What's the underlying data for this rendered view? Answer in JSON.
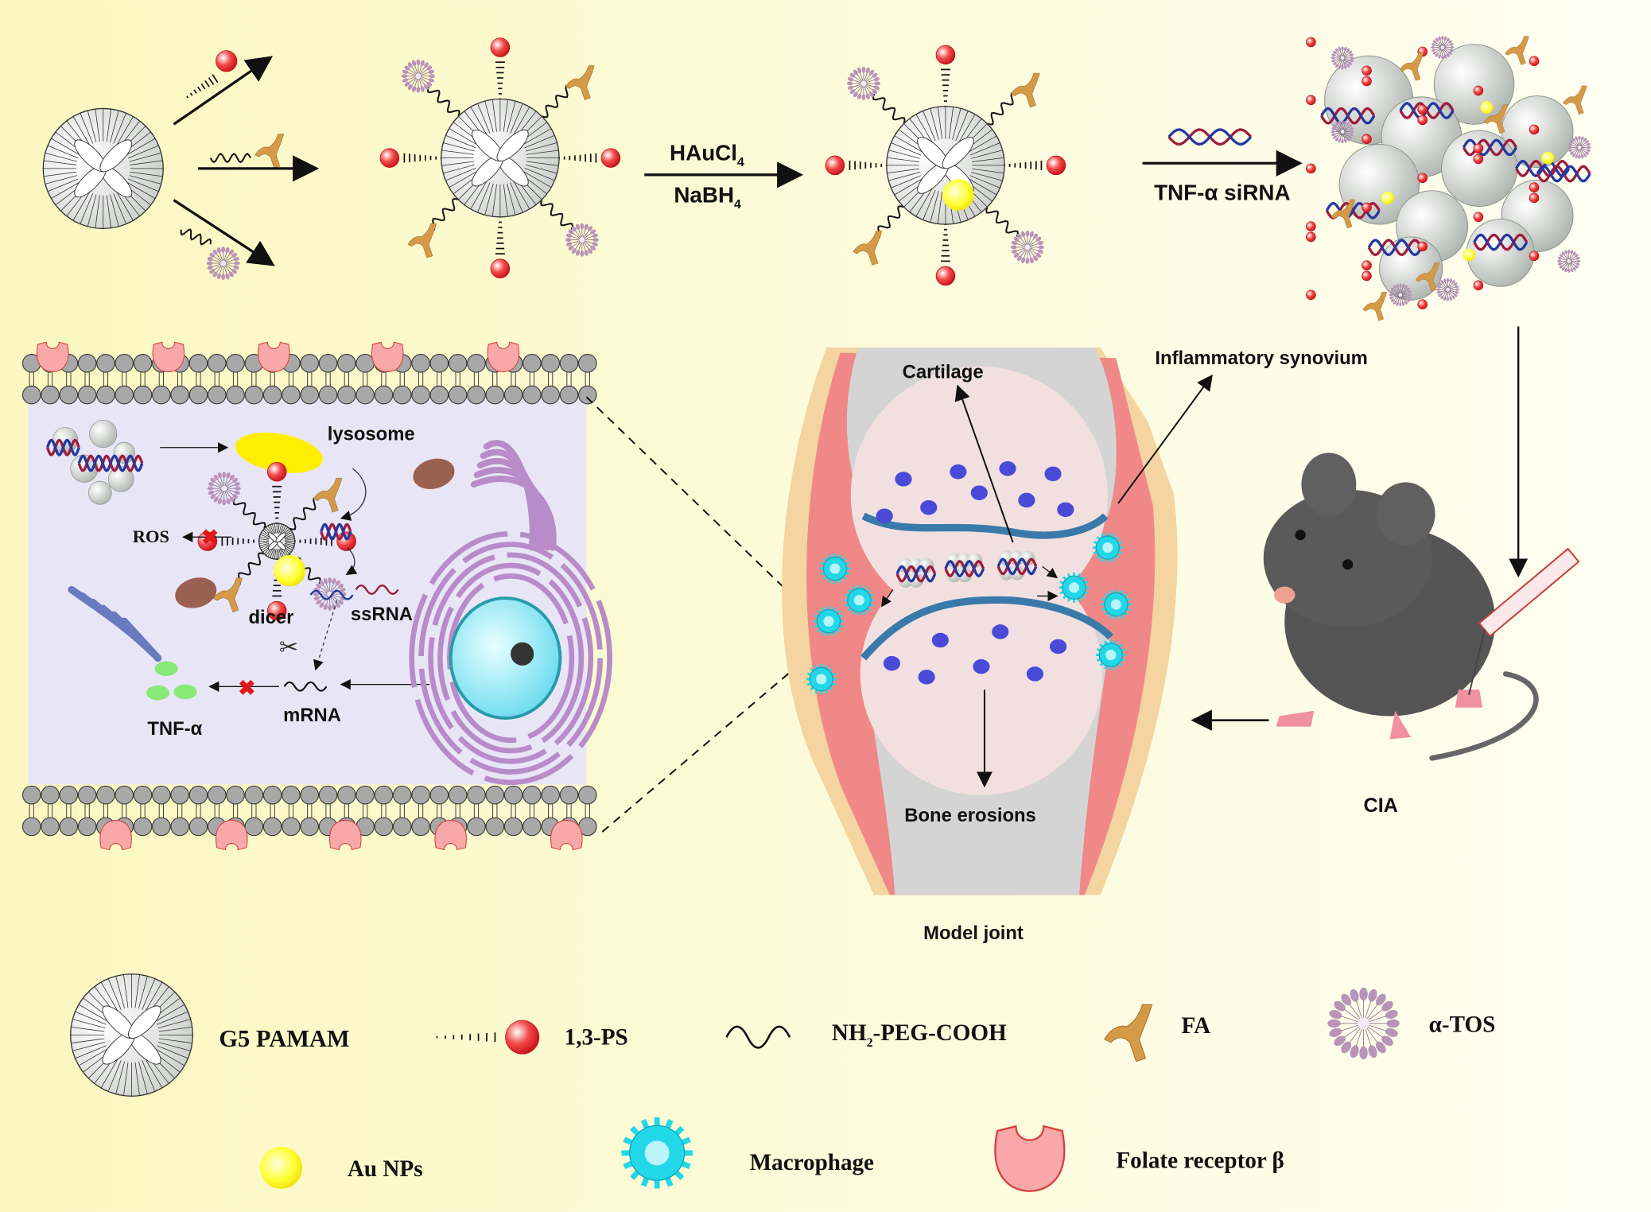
{
  "colors": {
    "background_left": "#fbf7c0",
    "background_right": "#fefef2",
    "sphere_red": "#e8232a",
    "au_yellow": "#ffff22",
    "fa_orange": "#d49a48",
    "tos_purple": "#b894b8",
    "macrophage_cyan": "#22d8e8",
    "receptor_pink": "#f8a8a8",
    "synovium_pink": "#f08888",
    "bone_gray": "#d4d4d4",
    "cell_bg": "#e8e6f6"
  },
  "synthesis": {
    "reagent_top": "HAuCl",
    "reagent_top_sub": "4",
    "reagent_bottom": "NaBH",
    "reagent_bottom_sub": "4",
    "sirna_label": "TNF-α siRNA"
  },
  "cell": {
    "lysosome": "lysosome",
    "ros": "ROS",
    "ssrna": "ssRNA",
    "dicer": "dicer",
    "mrna": "mRNA",
    "tnf": "TNF-α"
  },
  "joint": {
    "cartilage": "Cartilage",
    "synovium": "Inflammatory synovium",
    "bone_erosions": "Bone erosions",
    "caption": "Model joint"
  },
  "mouse": {
    "label": "CIA"
  },
  "legend": {
    "g5": "G5 PAMAM",
    "ps": "1,3-PS",
    "peg": "NH",
    "peg_sub": "2",
    "peg_rest": "-PEG-COOH",
    "fa": "FA",
    "tos": "α-TOS",
    "au": "Au NPs",
    "macrophage": "Macrophage",
    "receptor": "Folate receptor β"
  }
}
